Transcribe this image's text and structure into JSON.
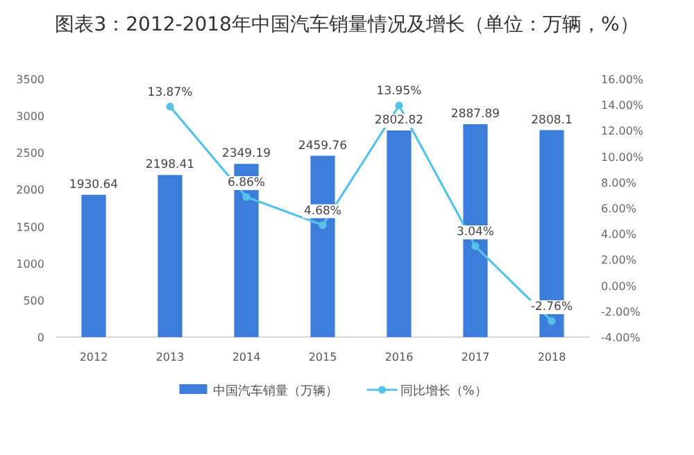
{
  "chart_data": {
    "type": "bar",
    "title": "图表3：2012-2018年中国汽车销量情况及增长（单位：万辆，%）",
    "categories": [
      "2012",
      "2013",
      "2014",
      "2015",
      "2016",
      "2017",
      "2018"
    ],
    "series": [
      {
        "name": "中国汽车销量（万辆）",
        "type": "bar",
        "color": "#3b7dd8",
        "values": [
          1930.64,
          2198.41,
          2349.19,
          2459.76,
          2802.82,
          2887.89,
          2808.1
        ],
        "value_labels": [
          "1930.64",
          "2198.41",
          "2349.19",
          "2459.76",
          "2802.82",
          "2887.89",
          "2808.1"
        ]
      },
      {
        "name": "同比增长（%）",
        "type": "line",
        "axis": "y2",
        "color": "#56c2e6",
        "marker": "circle",
        "values": [
          null,
          13.87,
          6.86,
          4.68,
          13.95,
          3.04,
          -2.76
        ],
        "value_labels": [
          null,
          "13.87%",
          "6.86%",
          "4.68%",
          "13.95%",
          "3.04%",
          "-2.76%"
        ]
      }
    ],
    "ylim": [
      0,
      3500
    ],
    "yticks": [
      0,
      500,
      1000,
      1500,
      2000,
      2500,
      3000,
      3500
    ],
    "y2lim": [
      -4,
      16
    ],
    "y2ticks": [
      {
        "value": -4,
        "label": "-4.00%"
      },
      {
        "value": -2,
        "label": "-2.00%"
      },
      {
        "value": 0,
        "label": "0.00%"
      },
      {
        "value": 2,
        "label": "2.00%"
      },
      {
        "value": 4,
        "label": "4.00%"
      },
      {
        "value": 6,
        "label": "6.00%"
      },
      {
        "value": 8,
        "label": "8.00%"
      },
      {
        "value": 10,
        "label": "10.00%"
      },
      {
        "value": 12,
        "label": "12.00%"
      },
      {
        "value": 14,
        "label": "14.00%"
      },
      {
        "value": 16,
        "label": "16.00%"
      }
    ],
    "grid": false,
    "legend": "bottom"
  }
}
